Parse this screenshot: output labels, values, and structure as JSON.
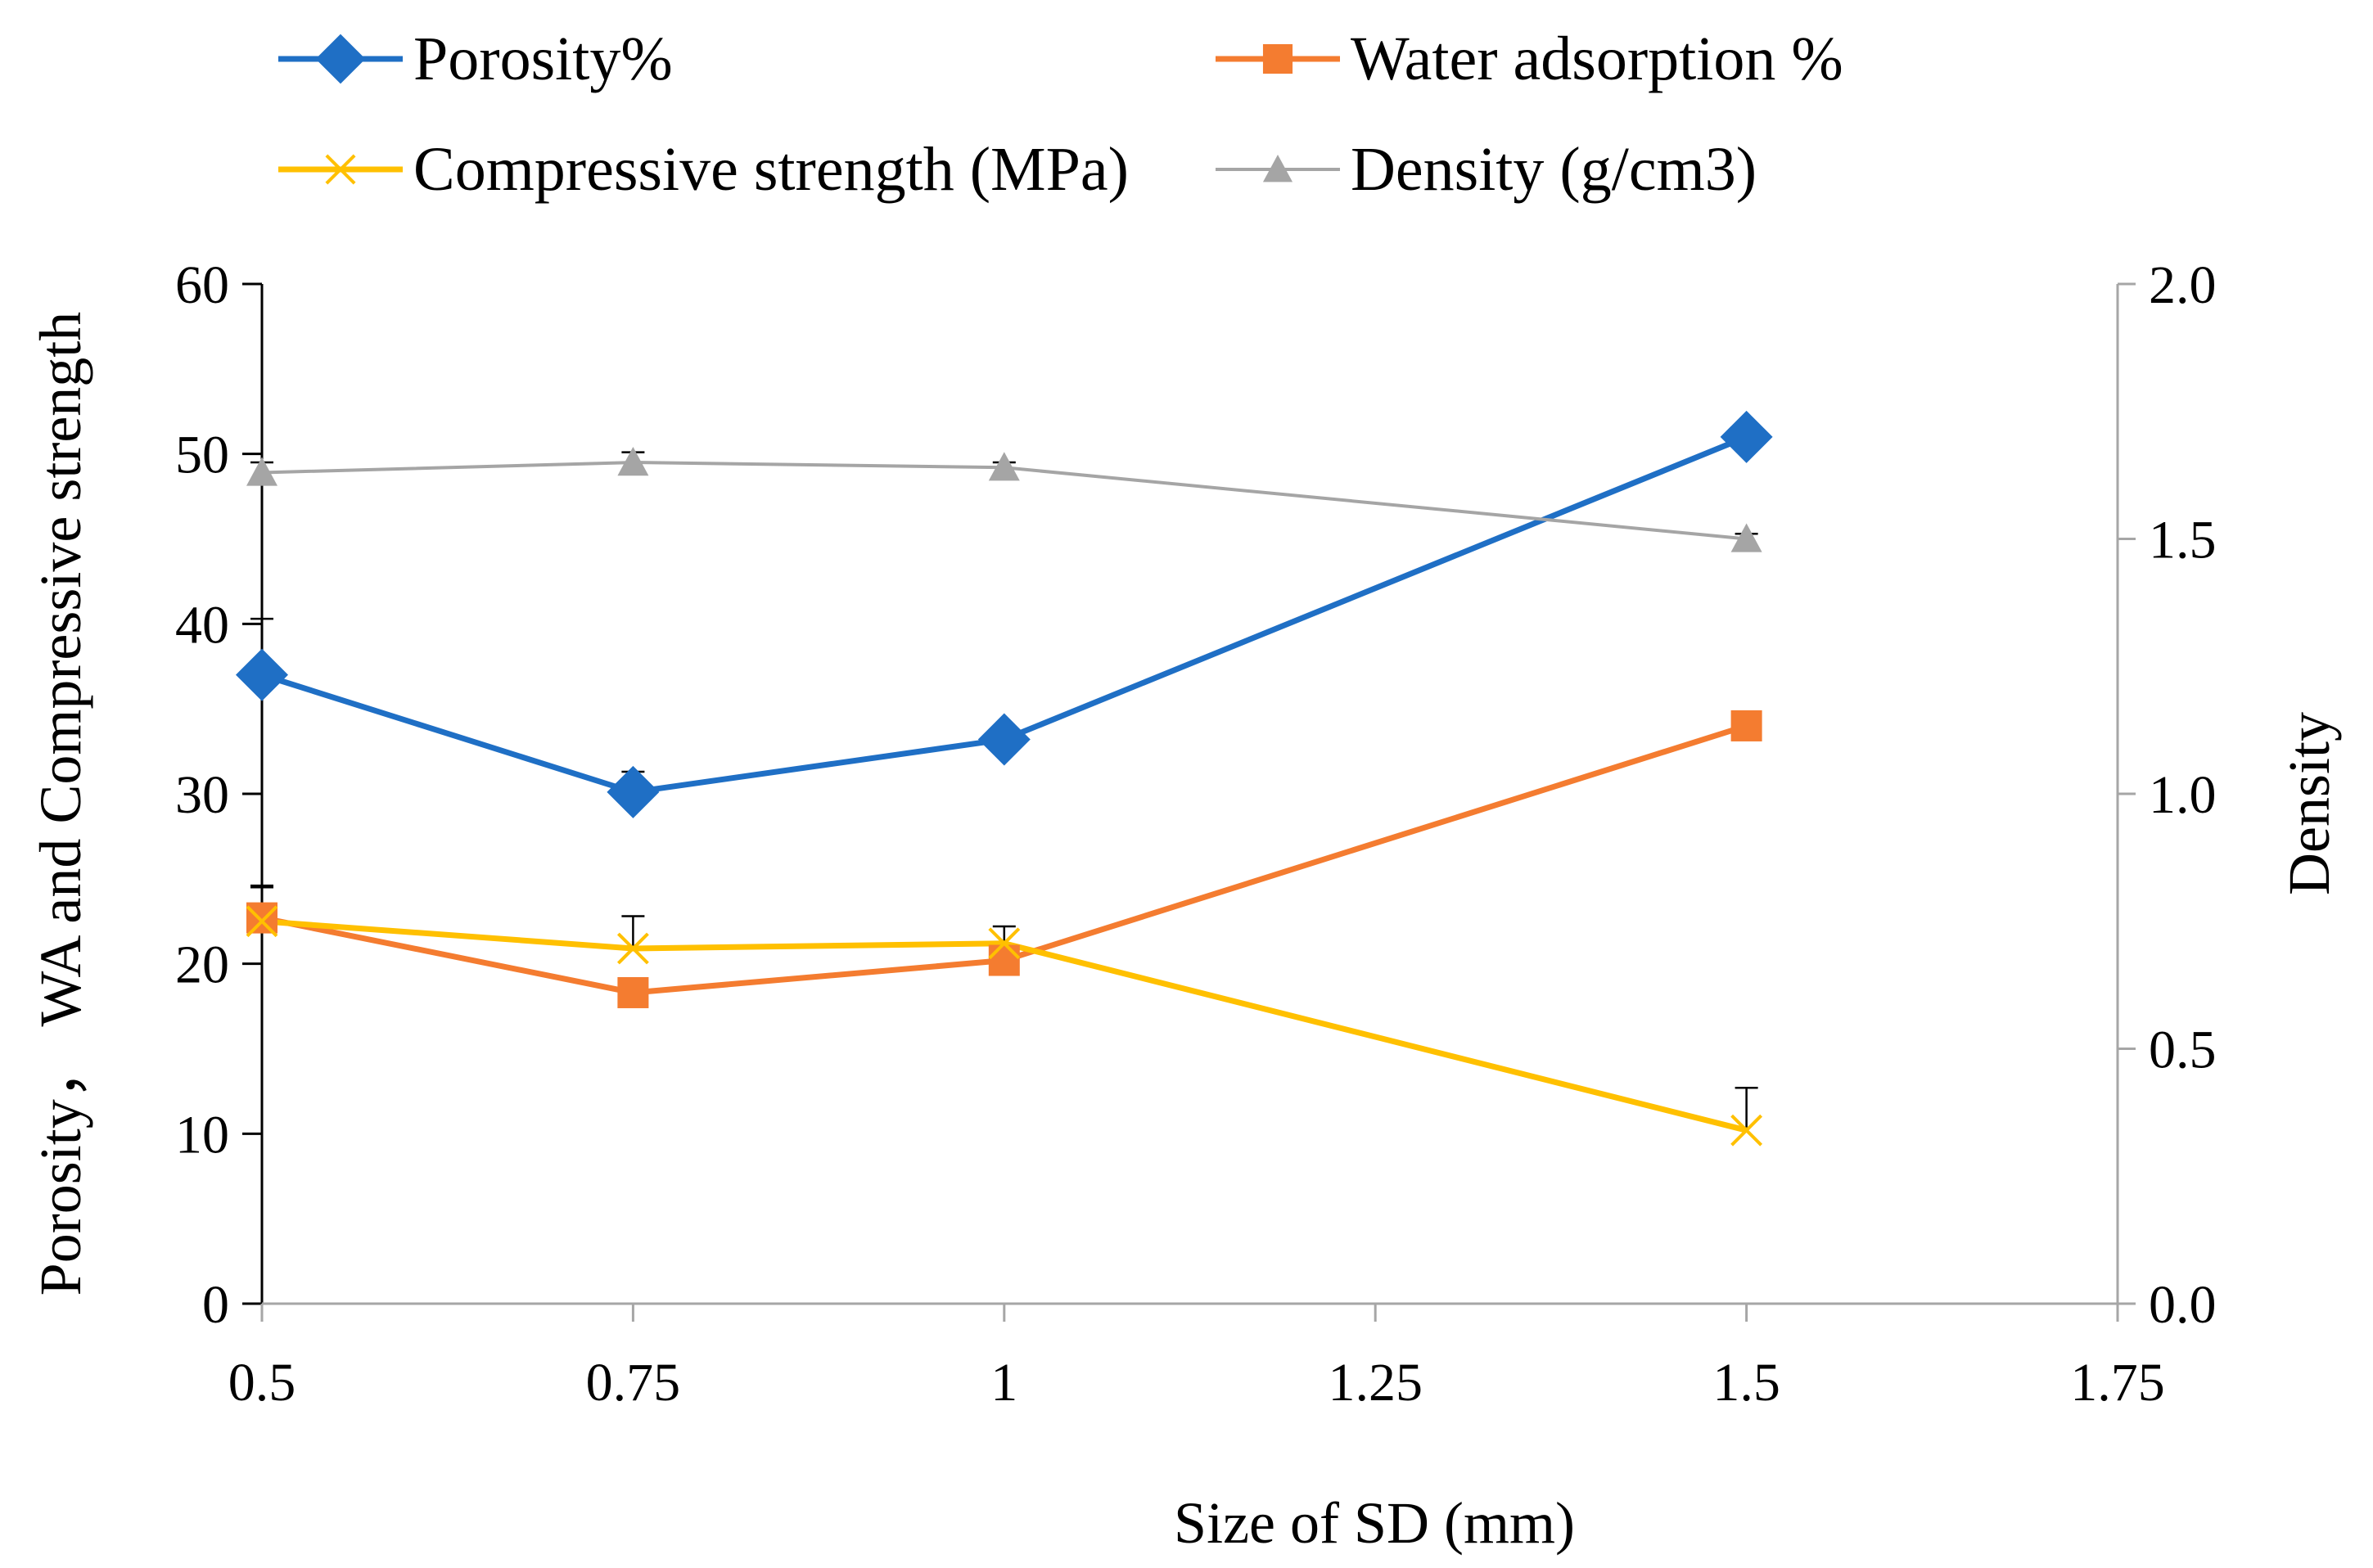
{
  "chart_data": {
    "type": "line",
    "title": "",
    "xlabel": "Size of SD (mm)",
    "ylabel": "Porosity， WA and Compressive strength",
    "y2label": "Density",
    "xlim": [
      0.5,
      1.75
    ],
    "ylim": [
      0,
      60
    ],
    "y2lim": [
      0.0,
      2.0
    ],
    "x_ticks": [
      "0.5",
      "0.75",
      "1",
      "1.25",
      "1.5",
      "1.75"
    ],
    "x_tick_values": [
      0.5,
      0.75,
      1.0,
      1.25,
      1.5,
      1.75
    ],
    "y_ticks": [
      "0",
      "10",
      "20",
      "30",
      "40",
      "50",
      "60"
    ],
    "y_tick_values": [
      0,
      10,
      20,
      30,
      40,
      50,
      60
    ],
    "y2_ticks": [
      "0.0",
      "0.5",
      "1.0",
      "1.5",
      "2.0"
    ],
    "y2_tick_values": [
      0.0,
      0.5,
      1.0,
      1.5,
      2.0
    ],
    "grid": false,
    "legend_position": "top",
    "series": [
      {
        "name": "Porosity%",
        "axis": "left",
        "marker": "diamond",
        "color": "#1F6FC5",
        "x": [
          0.5,
          0.75,
          1.0,
          1.5
        ],
        "values": [
          37.0,
          30.1,
          33.2,
          51.0
        ],
        "error": [
          3.3,
          1.2,
          0.6,
          0.4
        ]
      },
      {
        "name": "Water adsorption %",
        "axis": "left",
        "marker": "square",
        "color": "#F47C30",
        "x": [
          0.5,
          0.75,
          1.0,
          1.5
        ],
        "values": [
          22.7,
          18.3,
          20.2,
          34.0
        ],
        "error": [
          1.8,
          0.4,
          0.6,
          0.4
        ]
      },
      {
        "name": "Compressive strength (MPa)",
        "axis": "left",
        "marker": "x",
        "color": "#FFC000",
        "x": [
          0.5,
          0.75,
          1.0,
          1.5
        ],
        "values": [
          22.5,
          20.9,
          21.2,
          10.2
        ],
        "error": [
          2.1,
          1.9,
          1.0,
          2.5
        ]
      },
      {
        "name": "Density (g/cm3)",
        "axis": "right",
        "marker": "triangle",
        "color": "#A5A5A5",
        "x": [
          0.5,
          0.75,
          1.0,
          1.5
        ],
        "values": [
          1.63,
          1.65,
          1.64,
          1.5
        ],
        "error": [
          0.02,
          0.02,
          0.01,
          0.01
        ]
      }
    ]
  }
}
